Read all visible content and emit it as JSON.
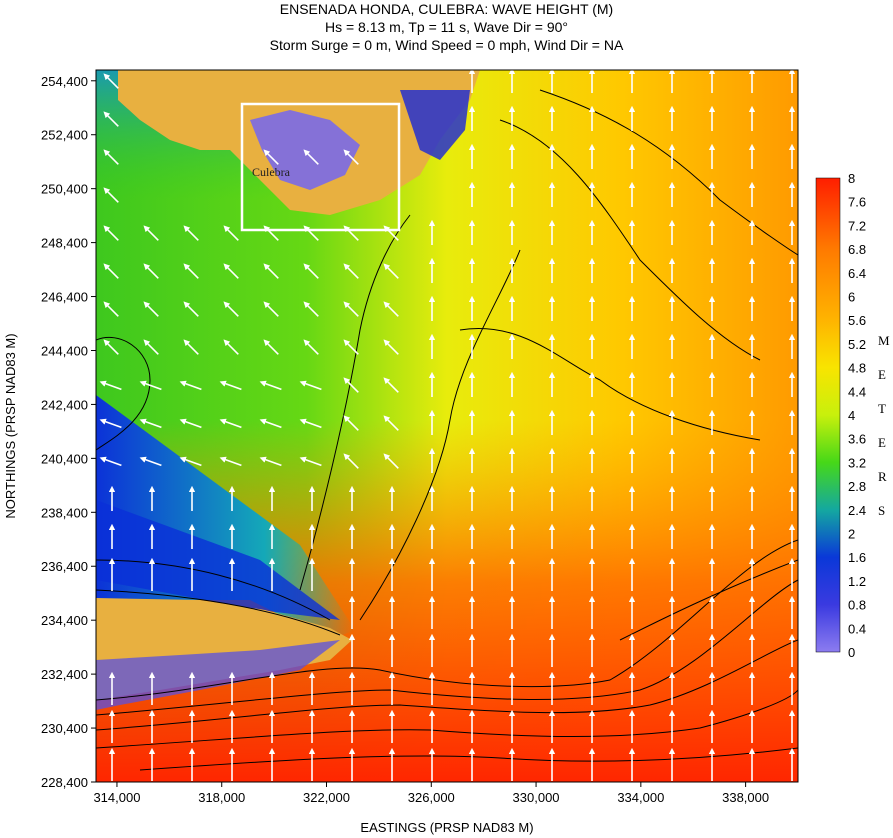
{
  "chart_data": {
    "type": "heatmap",
    "title": "ENSENADA HONDA, CULEBRA: WAVE HEIGHT (M)",
    "subtitle_lines": [
      "Hs = 8.13 m, Tp = 11 s, Wave Dir = 90°",
      "Storm Surge = 0 m, Wind Speed = 0 mph, Wind Dir = NA"
    ],
    "xlabel": "EASTINGS (PRSP NAD83 M)",
    "ylabel": "NORTHINGS (PRSP NAD83 M)",
    "xlim": [
      313200,
      340000
    ],
    "ylim": [
      228400,
      254800
    ],
    "x_ticks": [
      "314,000",
      "318,000",
      "322,000",
      "326,000",
      "330,000",
      "334,000",
      "338,000"
    ],
    "x_tick_values": [
      314000,
      318000,
      322000,
      326000,
      330000,
      334000,
      338000
    ],
    "y_ticks": [
      "254,400",
      "252,400",
      "250,400",
      "248,400",
      "246,400",
      "244,400",
      "242,400",
      "240,400",
      "238,400",
      "236,400",
      "234,400",
      "232,400",
      "230,400",
      "228,400"
    ],
    "y_tick_values": [
      254400,
      252400,
      250400,
      248400,
      246400,
      244400,
      242400,
      240400,
      238400,
      236400,
      234400,
      232400,
      230400,
      228400
    ],
    "colorbar": {
      "labels": [
        "8",
        "7.6",
        "7.2",
        "6.8",
        "6.4",
        "6",
        "5.6",
        "5.2",
        "4.8",
        "4.4",
        "4",
        "3.6",
        "3.2",
        "2.8",
        "2.4",
        "2",
        "1.6",
        "1.2",
        "0.8",
        "0.4",
        "0"
      ],
      "values": [
        8,
        7.6,
        7.2,
        6.8,
        6.4,
        6,
        5.6,
        5.2,
        4.8,
        4.4,
        4,
        3.6,
        3.2,
        2.8,
        2.4,
        2,
        1.6,
        1.2,
        0.8,
        0.4,
        0
      ],
      "unit_letters": [
        "M",
        "E",
        "T",
        "E",
        "R",
        "S"
      ],
      "colors": {
        "0": "#8c7cf0",
        "0.8": "#3a3ae0",
        "1.6": "#0a38d8",
        "2.4": "#14a0b0",
        "3.2": "#2ec828",
        "4": "#6ee010",
        "4.8": "#d6f00c",
        "5.6": "#fbd500",
        "6": "#ffb400",
        "6.8": "#ff7a00",
        "8": "#ff1e00"
      }
    },
    "land_color": "#e8b040",
    "inset_label": "Culebra"
  }
}
